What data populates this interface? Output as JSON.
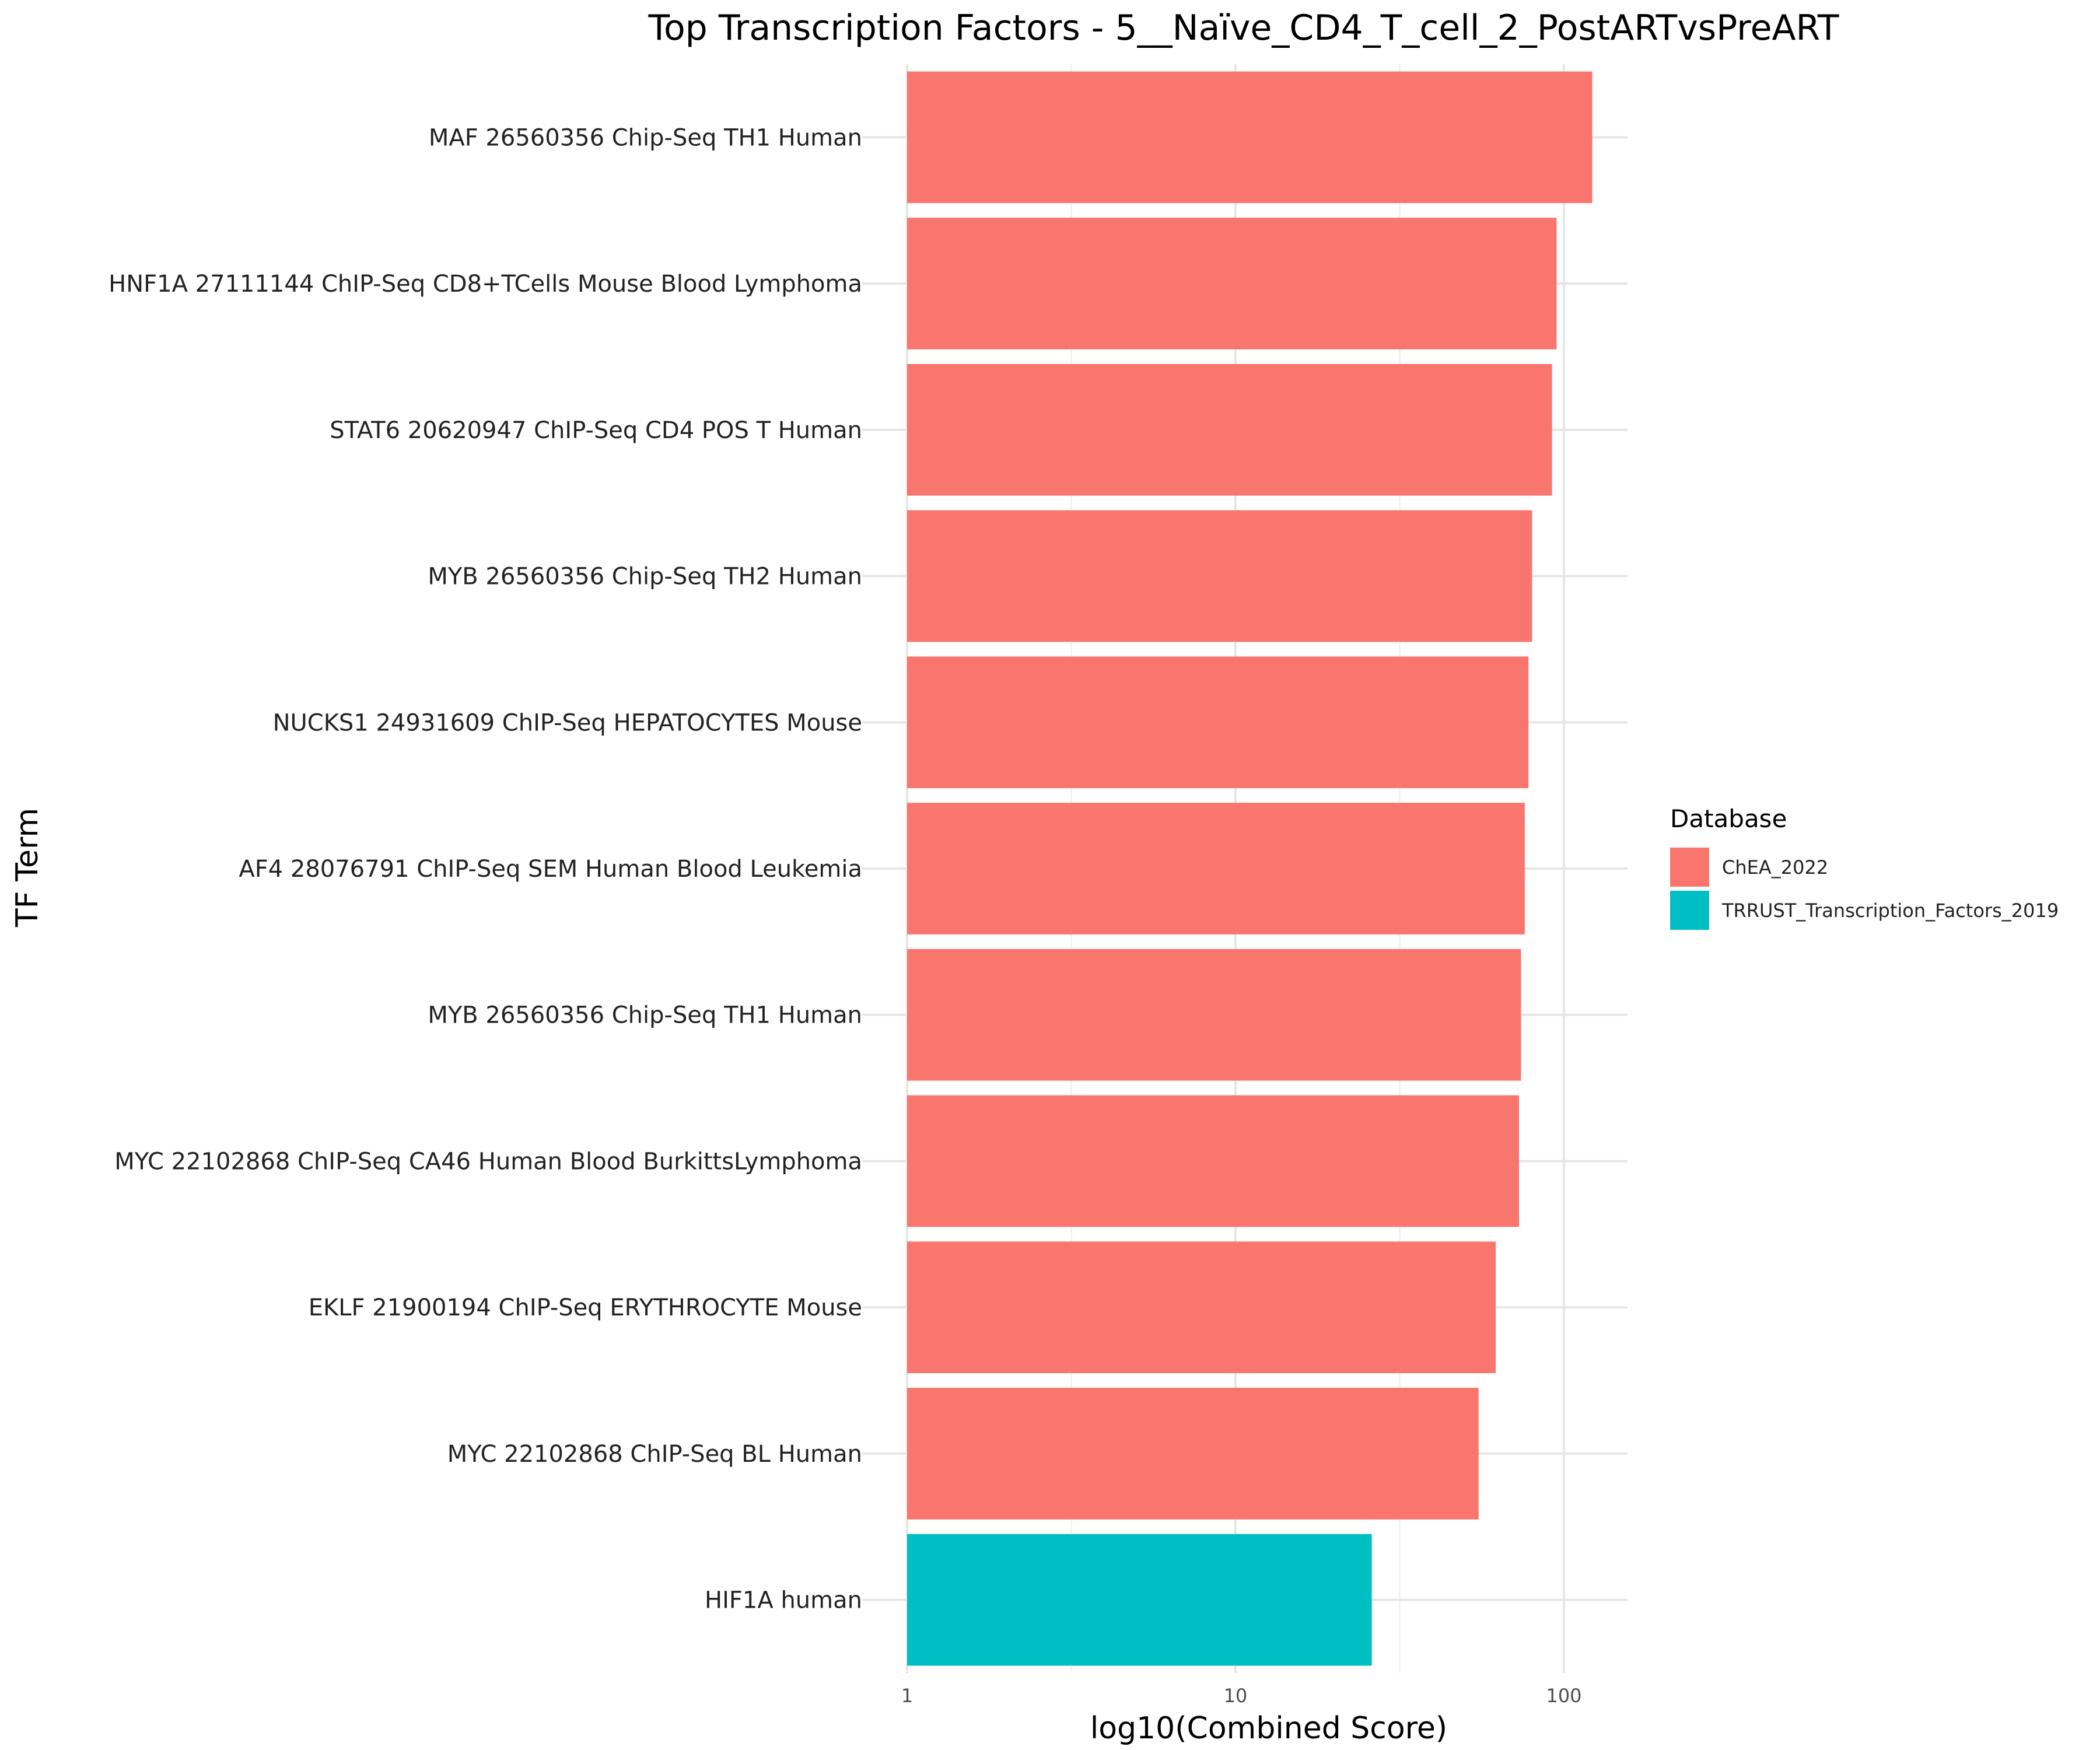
{
  "chart_data": {
    "type": "bar",
    "orientation": "horizontal",
    "title": "Top Transcription Factors - 5__Naïve_CD4_T_cell_2_PostARTvsPreART",
    "xlabel": "log10(Combined Score)",
    "ylabel": "TF Term",
    "x_scale": "log10",
    "xlim": [
      1,
      150
    ],
    "x_ticks": [
      1,
      10,
      100
    ],
    "x_tick_labels": [
      "1",
      "10",
      "100"
    ],
    "grid": true,
    "legend": {
      "title": "Database",
      "position": "right",
      "entries": [
        {
          "name": "ChEA_2022",
          "color": "#F8766D"
        },
        {
          "name": "TRRUST_Transcription_Factors_2019",
          "color": "#00BFC4"
        }
      ]
    },
    "categories": [
      "MAF 26560356 Chip-Seq TH1 Human",
      "HNF1A 27111144 ChIP-Seq CD8+TCells Mouse Blood Lymphoma",
      "STAT6 20620947 ChIP-Seq CD4 POS T Human",
      "MYB 26560356 Chip-Seq TH2 Human",
      "NUCKS1 24931609 ChIP-Seq HEPATOCYTES Mouse",
      "AF4 28076791 ChIP-Seq SEM Human Blood Leukemia",
      "MYB 26560356 Chip-Seq TH1 Human",
      "MYC 22102868 ChIP-Seq CA46 Human Blood BurkittsLymphoma",
      "EKLF 21900194 ChIP-Seq ERYTHROCYTE Mouse",
      "MYC 22102868 ChIP-Seq BL Human",
      "HIF1A human"
    ],
    "values": [
      122,
      95,
      92,
      80,
      78,
      76,
      74,
      73,
      62,
      55,
      26
    ],
    "database": [
      "ChEA_2022",
      "ChEA_2022",
      "ChEA_2022",
      "ChEA_2022",
      "ChEA_2022",
      "ChEA_2022",
      "ChEA_2022",
      "ChEA_2022",
      "ChEA_2022",
      "ChEA_2022",
      "TRRUST_Transcription_Factors_2019"
    ]
  }
}
